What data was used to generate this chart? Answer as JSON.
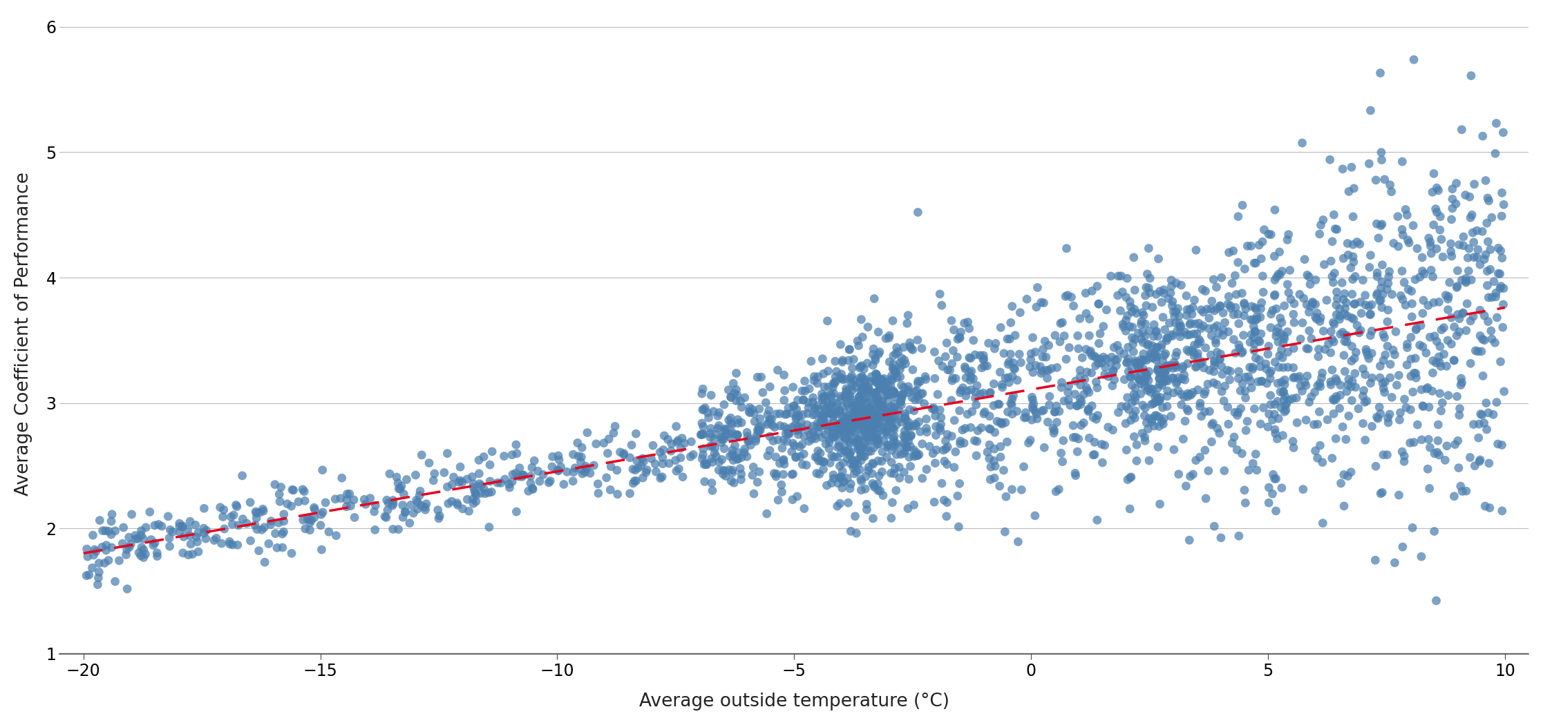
{
  "title": "",
  "xlabel": "Average outside temperature (°C)",
  "ylabel": "Average Coefficient of Performance",
  "xlim": [
    -20.5,
    10.5
  ],
  "ylim": [
    1.0,
    6.1
  ],
  "xticks": [
    -20,
    -15,
    -10,
    -5,
    0,
    5,
    10
  ],
  "yticks": [
    1,
    2,
    3,
    4,
    5,
    6
  ],
  "dot_color": "#4a7faf",
  "dot_alpha": 0.72,
  "dot_size": 85,
  "trend_color": "#e8001c",
  "trend_lw": 2.5,
  "trend_x0": -20,
  "trend_x1": 10,
  "trend_y0": 1.8,
  "trend_y1": 3.76,
  "grid_color": "#bbbbbb",
  "grid_lw": 0.8,
  "background_color": "#ffffff",
  "seed": 42
}
